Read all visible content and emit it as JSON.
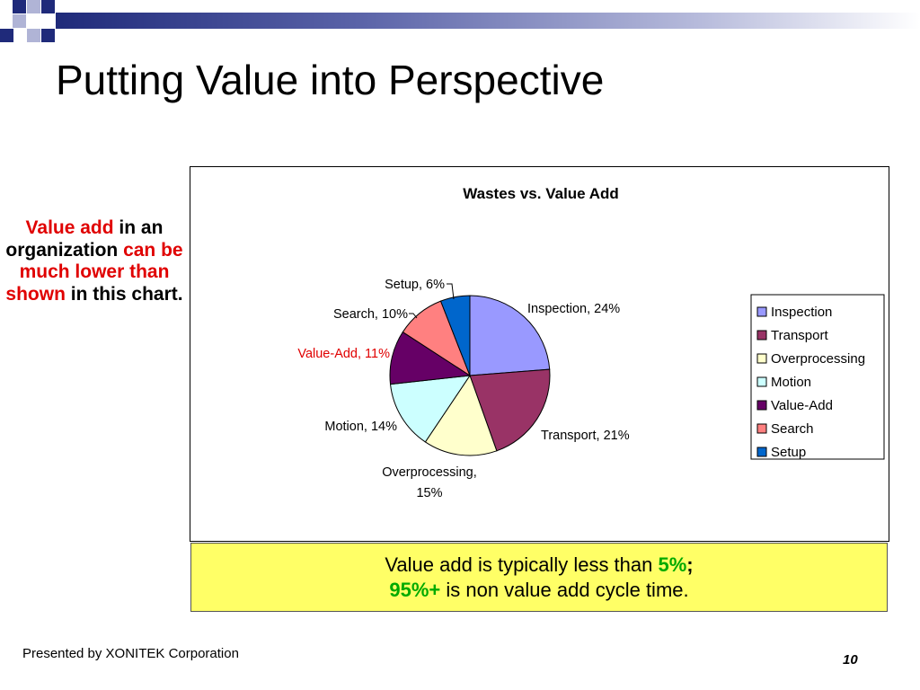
{
  "slide": {
    "title": "Putting Value into Perspective",
    "footer": "Presented by XONITEK Corporation",
    "page_number": "10"
  },
  "sidenote": {
    "part1": "Value add",
    "part2": " in an organization ",
    "part3": "can be much lower than shown",
    "part4": " in this chart."
  },
  "callout": {
    "line1_text": "Value add is typically less than ",
    "line1_highlight": "5%",
    "line1_end": ";",
    "line2_highlight": "95%+",
    "line2_text": " is non value add cycle time."
  },
  "chart_data": {
    "type": "pie",
    "title": "Wastes vs. Value Add",
    "slices": [
      {
        "name": "Inspection",
        "value": 24,
        "label": "Inspection, 24%",
        "color": "#9999ff"
      },
      {
        "name": "Transport",
        "value": 21,
        "label": "Transport, 21%",
        "color": "#993366"
      },
      {
        "name": "Overprocessing",
        "value": 15,
        "label": "Overprocessing, 15%",
        "color": "#ffffcc"
      },
      {
        "name": "Motion",
        "value": 14,
        "label": "Motion, 14%",
        "color": "#ccffff"
      },
      {
        "name": "Value-Add",
        "value": 11,
        "label": "Value-Add, 11%",
        "color": "#660066"
      },
      {
        "name": "Search",
        "value": 10,
        "label": "Search, 10%",
        "color": "#ff8080"
      },
      {
        "name": "Setup",
        "value": 6,
        "label": "Setup, 6%",
        "color": "#0066cc"
      }
    ],
    "highlighted_label_color": "#e00000",
    "legend_position": "right"
  }
}
